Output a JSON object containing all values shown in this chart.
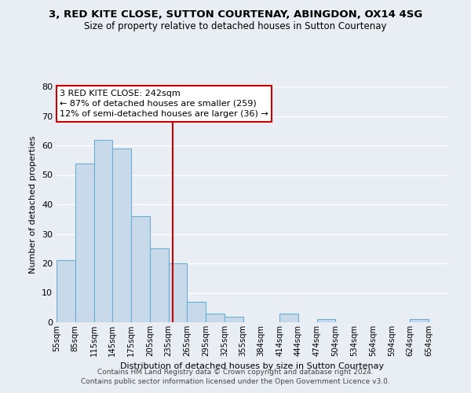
{
  "title": "3, RED KITE CLOSE, SUTTON COURTENAY, ABINGDON, OX14 4SG",
  "subtitle": "Size of property relative to detached houses in Sutton Courtenay",
  "xlabel": "Distribution of detached houses by size in Sutton Courtenay",
  "ylabel": "Number of detached properties",
  "bin_labels": [
    "55sqm",
    "85sqm",
    "115sqm",
    "145sqm",
    "175sqm",
    "205sqm",
    "235sqm",
    "265sqm",
    "295sqm",
    "325sqm",
    "355sqm",
    "384sqm",
    "414sqm",
    "444sqm",
    "474sqm",
    "504sqm",
    "534sqm",
    "564sqm",
    "594sqm",
    "624sqm",
    "654sqm"
  ],
  "bin_edges": [
    55,
    85,
    115,
    145,
    175,
    205,
    235,
    265,
    295,
    325,
    355,
    384,
    414,
    444,
    474,
    504,
    534,
    564,
    594,
    624,
    654
  ],
  "bar_heights": [
    21,
    54,
    62,
    59,
    36,
    25,
    20,
    7,
    3,
    2,
    0,
    0,
    3,
    0,
    1,
    0,
    0,
    0,
    0,
    1
  ],
  "bar_color": "#c8daea",
  "bar_edge_color": "#6aadd5",
  "property_line_x": 242,
  "annotation_title": "3 RED KITE CLOSE: 242sqm",
  "annotation_line1": "← 87% of detached houses are smaller (259)",
  "annotation_line2": "12% of semi-detached houses are larger (36) →",
  "annotation_box_color": "#ffffff",
  "annotation_box_edge": "#cc0000",
  "vline_color": "#cc0000",
  "ylim": [
    0,
    80
  ],
  "yticks": [
    0,
    10,
    20,
    30,
    40,
    50,
    60,
    70,
    80
  ],
  "footer_line1": "Contains HM Land Registry data © Crown copyright and database right 2024.",
  "footer_line2": "Contains public sector information licensed under the Open Government Licence v3.0.",
  "background_color": "#e8eef4",
  "grid_color": "#ffffff",
  "xlim_left": 55,
  "xlim_right": 684
}
